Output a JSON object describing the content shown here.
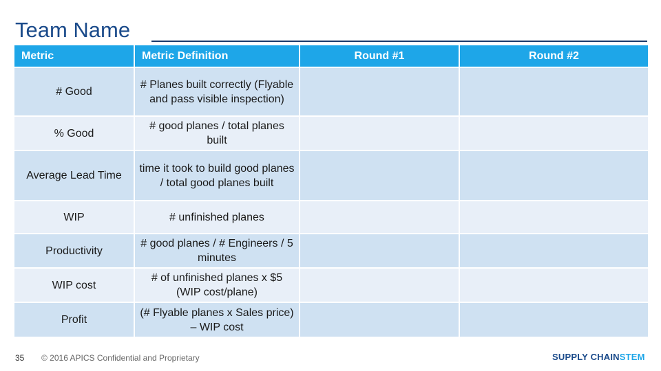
{
  "title": "Team Name",
  "table": {
    "headers": [
      "Metric",
      "Metric Definition",
      "Round #1",
      "Round #2"
    ],
    "rows": [
      {
        "metric": "# Good",
        "definition": "# Planes built correctly (Flyable and pass visible inspection)",
        "round1": "",
        "round2": ""
      },
      {
        "metric": "% Good",
        "definition": "# good planes / total planes built",
        "round1": "",
        "round2": ""
      },
      {
        "metric": "Average Lead Time",
        "definition": "time it took to build good planes / total good planes built",
        "round1": "",
        "round2": ""
      },
      {
        "metric": "WIP",
        "definition": "# unfinished planes",
        "round1": "",
        "round2": ""
      },
      {
        "metric": "Productivity",
        "definition": "# good planes / # Engineers / 5 minutes",
        "round1": "",
        "round2": ""
      },
      {
        "metric": "WIP cost",
        "definition": "# of unfinished planes x $5 (WIP cost/plane)",
        "round1": "",
        "round2": ""
      },
      {
        "metric": "Profit",
        "definition": "(# Flyable planes x Sales price) – WIP cost",
        "round1": "",
        "round2": ""
      }
    ]
  },
  "footer": {
    "page_number": "35",
    "copyright": "© 2016 APICS Confidential and Proprietary",
    "logo_part1": "SUPPLY CHAIN",
    "logo_part2": "STEM"
  },
  "colors": {
    "header_bg": "#1ea6e8",
    "row_odd": "#cfe1f2",
    "row_even": "#e8eff8",
    "title": "#1a4a8a"
  }
}
